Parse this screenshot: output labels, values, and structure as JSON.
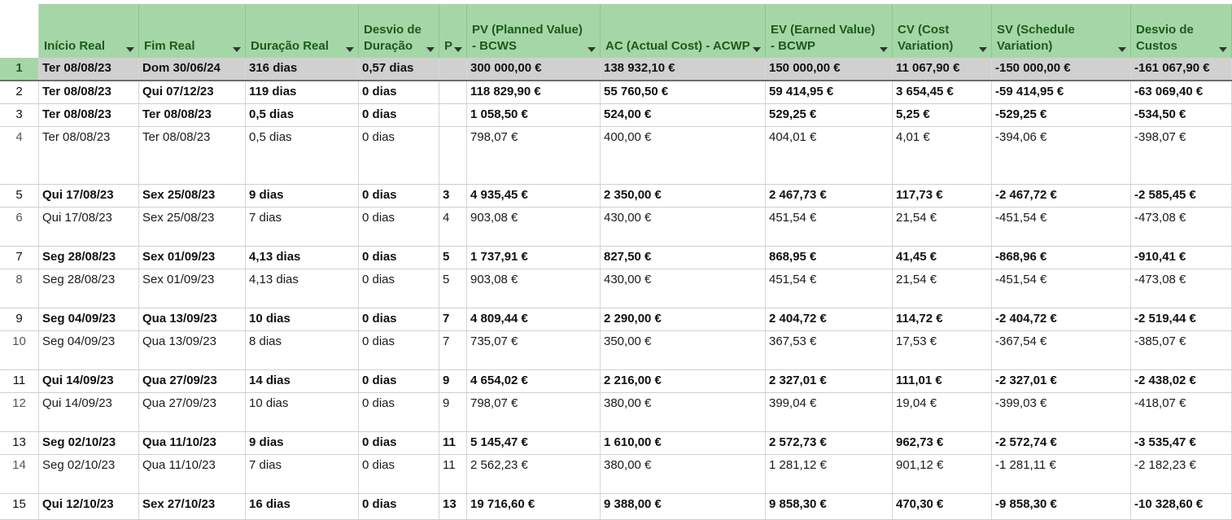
{
  "columns": [
    {
      "key": "inicio",
      "label": "Início Real"
    },
    {
      "key": "fim",
      "label": "Fim Real"
    },
    {
      "key": "duracao",
      "label": "Duração Real"
    },
    {
      "key": "desvio_duracao",
      "label": "Desvio de Duração"
    },
    {
      "key": "p",
      "label": "P"
    },
    {
      "key": "pv",
      "label": "PV (Planned Value) - BCWS"
    },
    {
      "key": "ac",
      "label": "AC (Actual Cost) - ACWP"
    },
    {
      "key": "ev",
      "label": "EV (Earned Value) - BCWP"
    },
    {
      "key": "cv",
      "label": "CV (Cost Variation)"
    },
    {
      "key": "sv",
      "label": "SV (Schedule Variation)"
    },
    {
      "key": "desvio_custos",
      "label": "Desvio de Custos"
    }
  ],
  "rows": [
    {
      "n": "1",
      "bold": true,
      "selected": true,
      "c": [
        "Ter 08/08/23",
        "Dom 30/06/24",
        "316 dias",
        "0,57 dias",
        "",
        "300 000,00 €",
        "138 932,10 €",
        "150 000,00 €",
        "11 067,90 €",
        "-150 000,00 €",
        "-161 067,90 €"
      ]
    },
    {
      "n": "2",
      "bold": true,
      "c": [
        "Ter 08/08/23",
        "Qui 07/12/23",
        "119 dias",
        "0 dias",
        "",
        "118 829,90 €",
        "55 760,50 €",
        "59 414,95 €",
        "3 654,45 €",
        "-59 414,95 €",
        "-63 069,40 €"
      ]
    },
    {
      "n": "3",
      "bold": true,
      "c": [
        "Ter 08/08/23",
        "Ter 08/08/23",
        "0,5 dias",
        "0 dias",
        "",
        "1 058,50 €",
        "524,00 €",
        "529,25 €",
        "5,25 €",
        "-529,25 €",
        "-534,50 €"
      ]
    },
    {
      "n": "4",
      "bold": false,
      "c": [
        "Ter 08/08/23",
        "Ter 08/08/23",
        "0,5 dias",
        "0 dias",
        "",
        "798,07 €",
        "400,00 €",
        "404,01 €",
        "4,01 €",
        "-394,06 €",
        "-398,07 €"
      ]
    },
    {
      "n": "5",
      "bold": true,
      "c": [
        "Qui 17/08/23",
        "Sex 25/08/23",
        "9 dias",
        "0 dias",
        "3",
        "4 935,45 €",
        "2 350,00 €",
        "2 467,73 €",
        "117,73 €",
        "-2 467,72 €",
        "-2 585,45 €"
      ]
    },
    {
      "n": "6",
      "bold": false,
      "c": [
        "Qui 17/08/23",
        "Sex 25/08/23",
        "7 dias",
        "0 dias",
        "4",
        "903,08 €",
        "430,00 €",
        "451,54 €",
        "21,54 €",
        "-451,54 €",
        "-473,08 €"
      ]
    },
    {
      "n": "7",
      "bold": true,
      "c": [
        "Seg 28/08/23",
        "Sex 01/09/23",
        "4,13 dias",
        "0 dias",
        "5",
        "1 737,91 €",
        "827,50 €",
        "868,95 €",
        "41,45 €",
        "-868,96 €",
        "-910,41 €"
      ]
    },
    {
      "n": "8",
      "bold": false,
      "c": [
        "Seg 28/08/23",
        "Sex 01/09/23",
        "4,13 dias",
        "0 dias",
        "5",
        "903,08 €",
        "430,00 €",
        "451,54 €",
        "21,54 €",
        "-451,54 €",
        "-473,08 €"
      ]
    },
    {
      "n": "9",
      "bold": true,
      "c": [
        "Seg 04/09/23",
        "Qua 13/09/23",
        "10 dias",
        "0 dias",
        "7",
        "4 809,44 €",
        "2 290,00 €",
        "2 404,72 €",
        "114,72 €",
        "-2 404,72 €",
        "-2 519,44 €"
      ]
    },
    {
      "n": "10",
      "bold": false,
      "c": [
        "Seg 04/09/23",
        "Qua 13/09/23",
        "8 dias",
        "0 dias",
        "7",
        "735,07 €",
        "350,00 €",
        "367,53 €",
        "17,53 €",
        "-367,54 €",
        "-385,07 €"
      ]
    },
    {
      "n": "11",
      "bold": true,
      "c": [
        "Qui 14/09/23",
        "Qua 27/09/23",
        "14 dias",
        "0 dias",
        "9",
        "4 654,02 €",
        "2 216,00 €",
        "2 327,01 €",
        "111,01 €",
        "-2 327,01 €",
        "-2 438,02 €"
      ]
    },
    {
      "n": "12",
      "bold": false,
      "c": [
        "Qui 14/09/23",
        "Qua 27/09/23",
        "10 dias",
        "0 dias",
        "9",
        "798,07 €",
        "380,00 €",
        "399,04 €",
        "19,04 €",
        "-399,03 €",
        "-418,07 €"
      ]
    },
    {
      "n": "13",
      "bold": true,
      "c": [
        "Seg 02/10/23",
        "Qua 11/10/23",
        "9 dias",
        "0 dias",
        "11",
        "5 145,47 €",
        "1 610,00 €",
        "2 572,73 €",
        "962,73 €",
        "-2 572,74 €",
        "-3 535,47 €"
      ]
    },
    {
      "n": "14",
      "bold": false,
      "c": [
        "Seg 02/10/23",
        "Qua 11/10/23",
        "7 dias",
        "0 dias",
        "11",
        "2 562,23 €",
        "380,00 €",
        "1 281,12 €",
        "901,12 €",
        "-1 281,11 €",
        "-2 182,23 €"
      ]
    },
    {
      "n": "15",
      "bold": true,
      "c": [
        "Qui 12/10/23",
        "Sex 27/10/23",
        "16 dias",
        "0 dias",
        "13",
        "19 716,60 €",
        "9 388,00 €",
        "9 858,30 €",
        "470,30 €",
        "-9 858,30 €",
        "-10 328,60 €"
      ]
    }
  ],
  "colors": {
    "header_bg": "#a5d6a7",
    "header_text": "#1d5a1d",
    "selected_row_bg": "#d0d0d0"
  }
}
